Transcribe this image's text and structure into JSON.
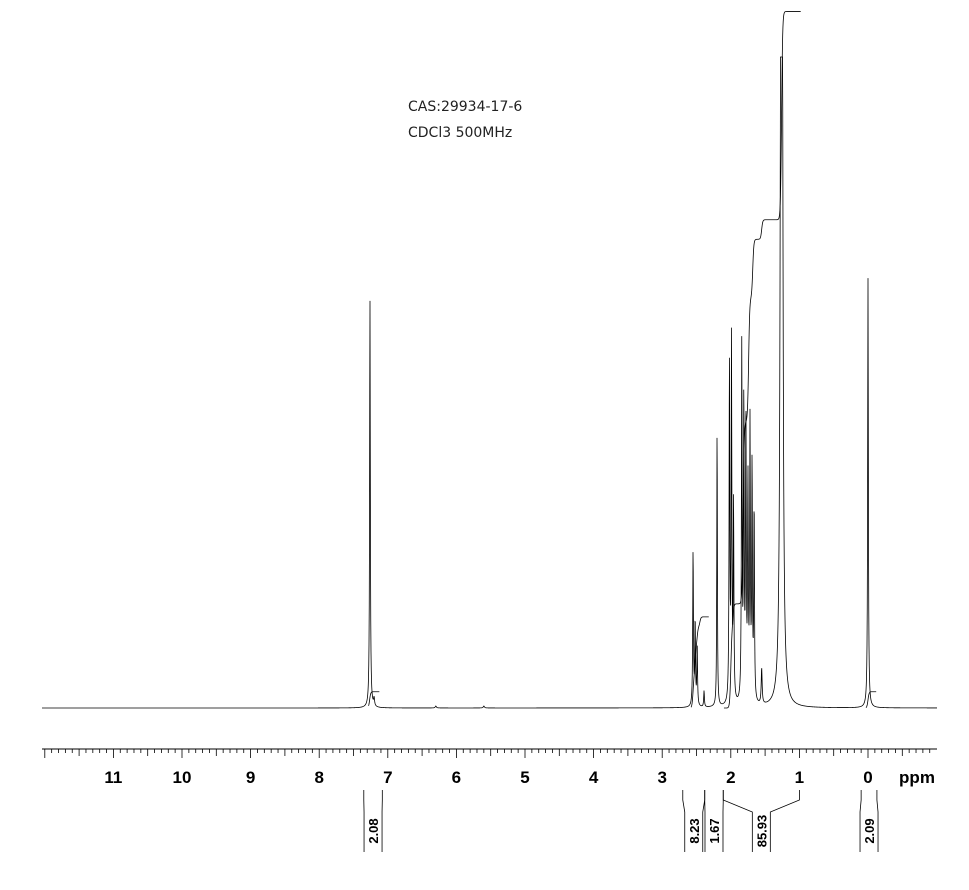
{
  "annotations": {
    "cas": "CAS:29934-17-6",
    "solvent_freq": "CDCl3 500MHz"
  },
  "chart_data": {
    "type": "line",
    "title": "",
    "xlabel": "ppm",
    "ylabel": "",
    "x_unit": "ppm",
    "xlim": [
      12.0,
      -0.97
    ],
    "x_reversed": true,
    "ylim": [
      0,
      100
    ],
    "grid": false,
    "legend": "none",
    "x_ticks_major": [
      11,
      10,
      9,
      8,
      7,
      6,
      5,
      4,
      3,
      2,
      1,
      0
    ],
    "x_tick_labels": [
      "11",
      "10",
      "9",
      "8",
      "7",
      "6",
      "5",
      "4",
      "3",
      "2",
      "1",
      "0"
    ],
    "x_minor_step": 0.1,
    "peaks": [
      {
        "ppm": 7.26,
        "height": 63.0,
        "width": 0.006
      },
      {
        "ppm": 7.2,
        "height": 1.2,
        "width": 0.008
      },
      {
        "ppm": 6.3,
        "height": 0.3,
        "width": 0.01
      },
      {
        "ppm": 5.6,
        "height": 0.3,
        "width": 0.01
      },
      {
        "ppm": 2.55,
        "height": 24.0,
        "width": 0.006
      },
      {
        "ppm": 2.52,
        "height": 13.0,
        "width": 0.006
      },
      {
        "ppm": 2.49,
        "height": 9.0,
        "width": 0.006
      },
      {
        "ppm": 2.39,
        "height": 2.5,
        "width": 0.006
      },
      {
        "ppm": 2.2,
        "height": 43.5,
        "width": 0.005
      },
      {
        "ppm": 2.02,
        "height": 52.5,
        "width": 0.006
      },
      {
        "ppm": 1.99,
        "height": 55.0,
        "width": 0.006
      },
      {
        "ppm": 1.96,
        "height": 30.0,
        "width": 0.006
      },
      {
        "ppm": 1.84,
        "height": 54.5,
        "width": 0.006
      },
      {
        "ppm": 1.81,
        "height": 46.0,
        "width": 0.006
      },
      {
        "ppm": 1.78,
        "height": 44.0,
        "width": 0.006
      },
      {
        "ppm": 1.75,
        "height": 33.0,
        "width": 0.006
      },
      {
        "ppm": 1.72,
        "height": 42.0,
        "width": 0.006
      },
      {
        "ppm": 1.69,
        "height": 36.0,
        "width": 0.006
      },
      {
        "ppm": 1.66,
        "height": 30.0,
        "width": 0.006
      },
      {
        "ppm": 1.55,
        "height": 5.5,
        "width": 0.008
      },
      {
        "ppm": 1.27,
        "height": 99.0,
        "width": 0.013
      },
      {
        "ppm": 1.25,
        "height": 97.0,
        "width": 0.013
      },
      {
        "ppm": 0.0,
        "height": 66.0,
        "width": 0.006
      }
    ],
    "integral_curves": [
      {
        "from_ppm": 7.28,
        "to_ppm": 7.12,
        "steps": [
          {
            "ppm": 7.265,
            "rise": 2.5
          }
        ]
      },
      {
        "from_ppm": 2.58,
        "to_ppm": 2.32,
        "steps": [
          {
            "ppm": 2.55,
            "rise": 5.0
          },
          {
            "ppm": 2.52,
            "rise": 4.5
          },
          {
            "ppm": 2.49,
            "rise": 3.0
          },
          {
            "ppm": 2.45,
            "rise": 1.5
          }
        ]
      },
      {
        "from_ppm": 2.1,
        "to_ppm": 0.98,
        "steps": [
          {
            "ppm": 2.0,
            "rise": 12.0
          },
          {
            "ppm": 1.97,
            "rise": 4.0
          },
          {
            "ppm": 1.82,
            "rise": 28.0
          },
          {
            "ppm": 1.74,
            "rise": 19.0
          },
          {
            "ppm": 1.68,
            "rise": 9.0
          },
          {
            "ppm": 1.55,
            "rise": 3.0
          },
          {
            "ppm": 1.26,
            "rise": 32.0
          }
        ]
      },
      {
        "from_ppm": 0.03,
        "to_ppm": -0.12,
        "steps": [
          {
            "ppm": 0.0,
            "rise": 2.5
          }
        ]
      }
    ],
    "integrals": [
      {
        "value": "2.08",
        "from_ppm": 7.35,
        "to_ppm": 7.08
      },
      {
        "value": "8.23",
        "from_ppm": 2.7,
        "to_ppm": 2.38
      },
      {
        "value": "1.67",
        "from_ppm": 2.38,
        "to_ppm": 2.11
      },
      {
        "value": "85.93",
        "from_ppm": 2.11,
        "to_ppm": 1.0
      },
      {
        "value": "2.09",
        "from_ppm": 0.1,
        "to_ppm": -0.13
      }
    ]
  }
}
